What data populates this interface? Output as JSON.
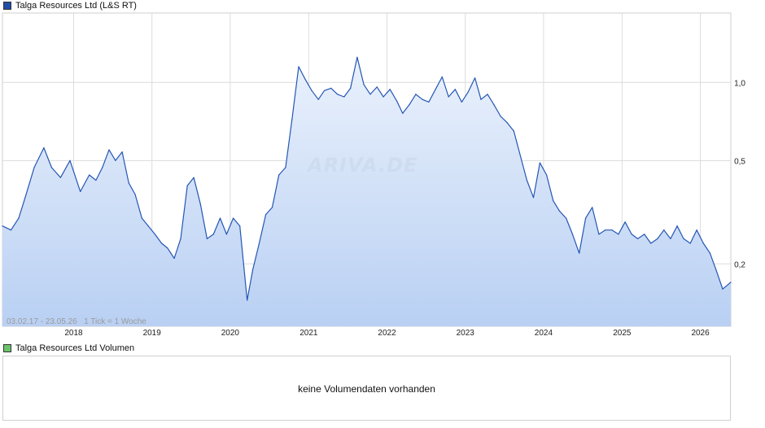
{
  "price_legend": {
    "label": "Talga Resources Ltd (L&S RT)",
    "color": "#1f4fa8"
  },
  "volume_legend": {
    "label": "Talga Resources Ltd Volumen",
    "color": "#6cc46c"
  },
  "range_info": "03.02.17 - 23.05.26   1 Tick = 1 Woche",
  "watermark": "ARIVA.DE",
  "volume_panel": {
    "message": "keine Volumendaten vorhanden"
  },
  "colors": {
    "line": "#2456b4",
    "fill_top": "#eaf1fc",
    "fill_bottom": "#b9d0f3",
    "grid": "#dcdcdc"
  },
  "chart_data": {
    "type": "area",
    "title": "Talga Resources Ltd (L&S RT)",
    "xlabel": "",
    "ylabel": "",
    "y_scale": "log",
    "ylim": [
      0.115,
      1.85
    ],
    "xlim": [
      "2017-02-03",
      "2026-05-23"
    ],
    "x_tick_labels": [
      "2018",
      "2019",
      "2020",
      "2021",
      "2022",
      "2023",
      "2024",
      "2025",
      "2026"
    ],
    "y_tick_labels": [
      "0,2",
      "0,5",
      "1,0"
    ],
    "y_tick_values": [
      0.2,
      0.5,
      1.0
    ],
    "grid": true,
    "legend_position": "top-left",
    "series": [
      {
        "name": "Talga Resources Ltd (L&S RT)",
        "x": [
          "2017-02-03",
          "2017-03-15",
          "2017-04-20",
          "2017-05-20",
          "2017-07-01",
          "2017-08-15",
          "2017-09-20",
          "2017-11-01",
          "2017-12-15",
          "2018-02-01",
          "2018-03-15",
          "2018-04-15",
          "2018-05-15",
          "2018-06-15",
          "2018-07-15",
          "2018-08-15",
          "2018-09-15",
          "2018-10-15",
          "2018-11-15",
          "2018-12-15",
          "2019-01-15",
          "2019-02-15",
          "2019-03-15",
          "2019-04-15",
          "2019-05-15",
          "2019-06-15",
          "2019-07-15",
          "2019-08-15",
          "2019-09-15",
          "2019-10-15",
          "2019-11-15",
          "2019-12-15",
          "2020-01-15",
          "2020-02-15",
          "2020-03-20",
          "2020-04-15",
          "2020-05-15",
          "2020-06-15",
          "2020-07-15",
          "2020-08-15",
          "2020-09-15",
          "2020-10-15",
          "2020-11-15",
          "2020-12-15",
          "2021-01-15",
          "2021-02-15",
          "2021-03-15",
          "2021-04-15",
          "2021-05-15",
          "2021-06-15",
          "2021-07-15",
          "2021-08-15",
          "2021-09-15",
          "2021-10-15",
          "2021-11-15",
          "2021-12-15",
          "2022-01-15",
          "2022-02-15",
          "2022-03-15",
          "2022-04-15",
          "2022-05-15",
          "2022-06-15",
          "2022-07-15",
          "2022-08-15",
          "2022-09-15",
          "2022-10-15",
          "2022-11-15",
          "2022-12-15",
          "2023-01-15",
          "2023-02-15",
          "2023-03-15",
          "2023-04-15",
          "2023-05-15",
          "2023-06-15",
          "2023-07-15",
          "2023-08-15",
          "2023-09-15",
          "2023-10-15",
          "2023-11-15",
          "2023-12-15",
          "2024-01-15",
          "2024-02-15",
          "2024-03-15",
          "2024-04-15",
          "2024-05-15",
          "2024-06-15",
          "2024-07-15",
          "2024-08-15",
          "2024-09-15",
          "2024-10-15",
          "2024-11-15",
          "2024-12-15",
          "2025-01-15",
          "2025-02-15",
          "2025-03-15",
          "2025-04-15",
          "2025-05-15",
          "2025-06-15",
          "2025-07-15",
          "2025-08-15",
          "2025-09-15",
          "2025-10-15",
          "2025-11-15",
          "2025-12-15",
          "2026-01-15",
          "2026-02-15",
          "2026-03-15",
          "2026-04-15",
          "2026-05-23"
        ],
        "values": [
          0.28,
          0.27,
          0.3,
          0.36,
          0.47,
          0.56,
          0.47,
          0.43,
          0.5,
          0.38,
          0.44,
          0.42,
          0.47,
          0.55,
          0.5,
          0.54,
          0.41,
          0.37,
          0.3,
          0.28,
          0.26,
          0.24,
          0.23,
          0.21,
          0.25,
          0.4,
          0.43,
          0.34,
          0.25,
          0.26,
          0.3,
          0.26,
          0.3,
          0.28,
          0.145,
          0.19,
          0.24,
          0.31,
          0.33,
          0.44,
          0.47,
          0.72,
          1.15,
          1.03,
          0.93,
          0.86,
          0.93,
          0.95,
          0.9,
          0.88,
          0.95,
          1.25,
          0.98,
          0.9,
          0.96,
          0.88,
          0.94,
          0.85,
          0.76,
          0.82,
          0.9,
          0.86,
          0.84,
          0.94,
          1.05,
          0.88,
          0.94,
          0.84,
          0.92,
          1.04,
          0.86,
          0.9,
          0.82,
          0.74,
          0.7,
          0.65,
          0.52,
          0.42,
          0.36,
          0.49,
          0.44,
          0.35,
          0.32,
          0.3,
          0.26,
          0.22,
          0.3,
          0.33,
          0.26,
          0.27,
          0.27,
          0.26,
          0.29,
          0.26,
          0.25,
          0.26,
          0.24,
          0.25,
          0.27,
          0.25,
          0.28,
          0.25,
          0.24,
          0.27,
          0.24,
          0.22,
          0.19,
          0.16,
          0.17
        ]
      }
    ]
  }
}
